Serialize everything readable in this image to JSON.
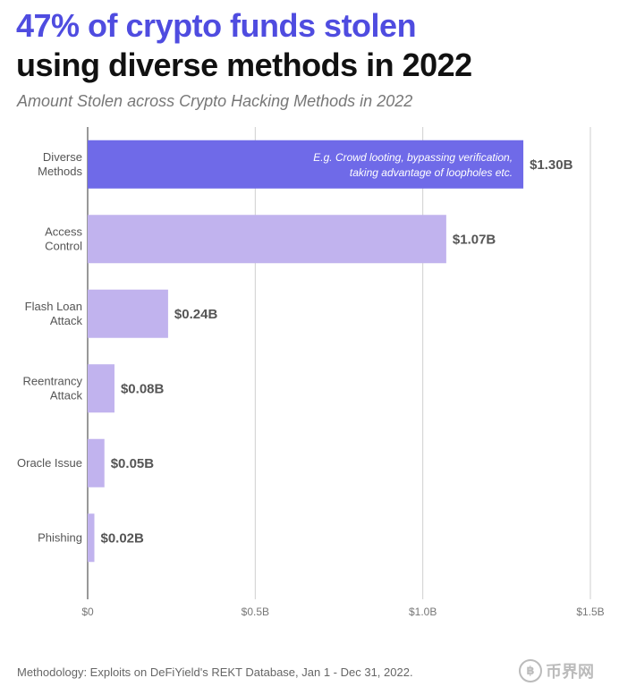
{
  "header": {
    "title_line1": "47% of crypto funds stolen",
    "title_line2": "using diverse methods in 2022",
    "subtitle": "Amount Stolen across Crypto Hacking Methods in 2022"
  },
  "chart_data": {
    "type": "bar",
    "orientation": "horizontal",
    "title": "Amount Stolen across Crypto Hacking Methods in 2022",
    "categories": [
      [
        "Diverse",
        "Methods"
      ],
      [
        "Access",
        "Control"
      ],
      [
        "Flash Loan",
        "Attack"
      ],
      [
        "Reentrancy",
        "Attack"
      ],
      [
        "Oracle Issue"
      ],
      [
        "Phishing"
      ]
    ],
    "values": [
      1.3,
      1.07,
      0.24,
      0.08,
      0.05,
      0.02
    ],
    "value_labels": [
      "$1.30B",
      "$1.07B",
      "$0.24B",
      "$0.08B",
      "$0.05B",
      "$0.02B"
    ],
    "xlim": [
      0,
      1.5
    ],
    "x_ticks": [
      0,
      0.5,
      1.0,
      1.5
    ],
    "x_tick_labels": [
      "$0",
      "$0.5B",
      "$1.0B",
      "$1.5B"
    ],
    "grid": true,
    "colors": {
      "highlight": "#6f6ae8",
      "default": "#c1b3ee",
      "grid": "#cfcfcf"
    },
    "annotation": {
      "bar_index": 0,
      "lines": [
        "E.g. Crowd looting, bypassing verification,",
        "taking advantage of loopholes etc."
      ]
    }
  },
  "footer": {
    "methodology": "Methodology: Exploits on DeFiYield's REKT Database, Jan 1 - Dec 31, 2022."
  },
  "watermark": {
    "symbol": "฿",
    "text": "币界网"
  }
}
